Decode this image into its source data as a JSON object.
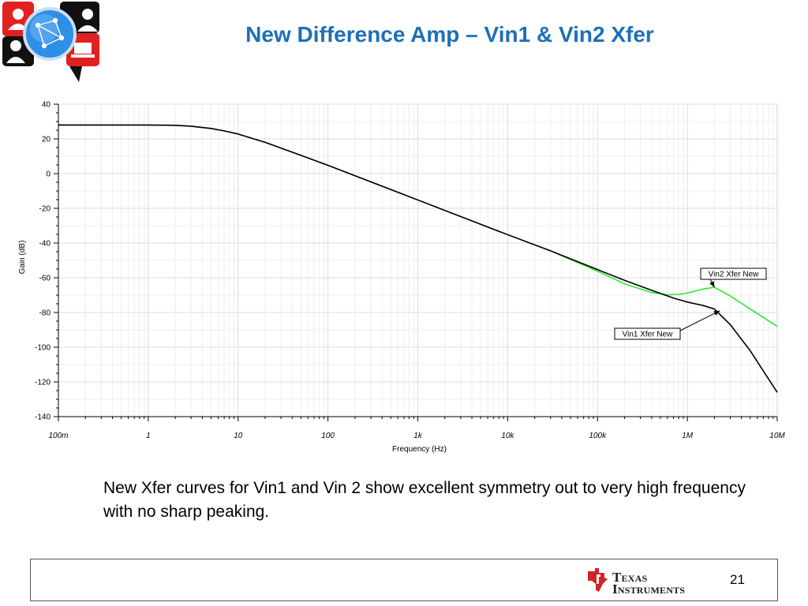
{
  "slide": {
    "title": "New Difference Amp – Vin1 & Vin2 Xfer",
    "caption": "New Xfer curves for Vin1 and Vin 2 show excellent symmetry out to very high frequency with no sharp peaking.",
    "page_number": "21"
  },
  "footer": {
    "company_line1": "Texas",
    "company_line2": "Instruments",
    "colors": {
      "logo_red": "#d2232a",
      "text": "#1b1b1b"
    }
  },
  "logo": {
    "icon": "network-people-globe-icon",
    "colors": {
      "red": "#e0211f",
      "globe": "#2f8fe6",
      "dark": "#111111"
    }
  },
  "colors": {
    "title": "#1e6fb8",
    "vin1": "#000000",
    "vin2": "#2ee82a",
    "grid": "#e4e4e4"
  },
  "chart_data": {
    "type": "line",
    "title": "",
    "xlabel": "Frequency (Hz)",
    "ylabel": "Gain (dB)",
    "xscale": "log",
    "xlim": [
      0.1,
      10000000
    ],
    "ylim": [
      -140,
      40
    ],
    "x_tick_labels": [
      "100m",
      "1",
      "10",
      "100",
      "1k",
      "10k",
      "100k",
      "1M",
      "10M"
    ],
    "x_tick_values": [
      0.1,
      1,
      10,
      100,
      1000,
      10000,
      100000,
      1000000,
      10000000
    ],
    "y_ticks": [
      40,
      20,
      0,
      -20,
      -40,
      -60,
      -80,
      -100,
      -120,
      -140
    ],
    "grid": true,
    "series": [
      {
        "name": "Vin1 Xfer New",
        "color": "#000000",
        "x": [
          0.1,
          0.3,
          1,
          2,
          3,
          5,
          7,
          10,
          20,
          50,
          100,
          1000,
          10000,
          30000,
          100000,
          200000,
          400000,
          700000,
          1000000,
          1500000,
          2000000,
          3000000,
          5000000,
          10000000
        ],
        "y": [
          28,
          28,
          28,
          27.8,
          27.3,
          26,
          24.6,
          22.8,
          18,
          10.5,
          4.8,
          -15.2,
          -35.2,
          -44.5,
          -55.3,
          -61.5,
          -67.2,
          -71.7,
          -74,
          -76,
          -78,
          -87,
          -102,
          -126
        ]
      },
      {
        "name": "Vin2 Xfer New",
        "color": "#2ee82a",
        "x": [
          0.1,
          0.3,
          1,
          2,
          3,
          5,
          7,
          10,
          20,
          50,
          100,
          1000,
          10000,
          30000,
          100000,
          200000,
          400000,
          600000,
          800000,
          1000000,
          1500000,
          2000000,
          3000000,
          5000000,
          10000000
        ],
        "y": [
          28,
          28,
          28,
          27.8,
          27.3,
          26,
          24.6,
          22.8,
          18,
          10.5,
          4.8,
          -15.2,
          -35.2,
          -44.5,
          -56.2,
          -63.5,
          -68.5,
          -69.8,
          -69.6,
          -68.8,
          -66.5,
          -65.5,
          -70.5,
          -78,
          -88
        ]
      }
    ],
    "annotations": [
      {
        "text": "Vin2 Xfer New",
        "series": "Vin2 Xfer New",
        "arrow_to": {
          "x": 2000000,
          "y": -65.5
        }
      },
      {
        "text": "Vin1 Xfer New",
        "series": "Vin1 Xfer New",
        "arrow_to": {
          "x": 2300000,
          "y": -79
        }
      }
    ]
  }
}
